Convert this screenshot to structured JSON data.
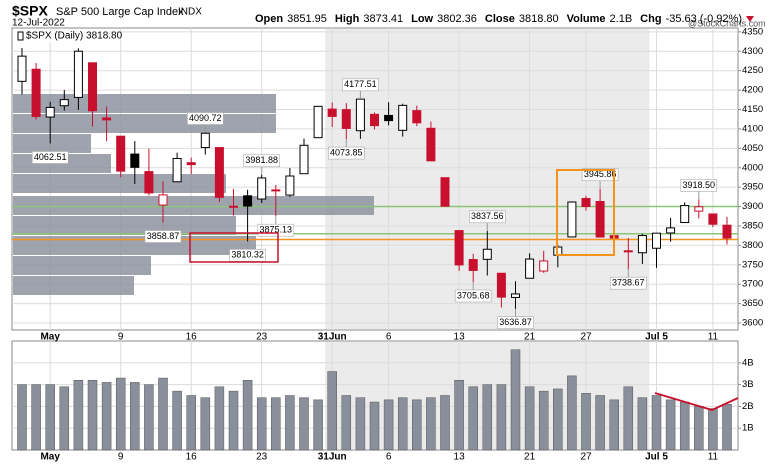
{
  "header": {
    "symbol": "$SPX",
    "name": "S&P 500 Large Cap Index",
    "exchange": "INDX",
    "date": "12-Jul-2022",
    "stats": [
      {
        "label": "Open",
        "value": "3851.95"
      },
      {
        "label": "High",
        "value": "3873.41"
      },
      {
        "label": "Low",
        "value": "3802.36"
      },
      {
        "label": "Close",
        "value": "3818.80"
      },
      {
        "label": "Volume",
        "value": "2.1B"
      },
      {
        "label": "Chg",
        "value": "-35.63 (-0.92%)"
      }
    ],
    "copyright": "@StockCharts.com"
  },
  "chart_data": [
    {
      "type": "candlestick",
      "legend": "$SPX (Daily) 3818.80",
      "categories": [
        null,
        null,
        "May",
        null,
        null,
        null,
        null,
        "9",
        null,
        null,
        null,
        null,
        "16",
        null,
        null,
        null,
        null,
        "23",
        null,
        null,
        null,
        null,
        "31Jun",
        null,
        null,
        null,
        "6",
        null,
        null,
        null,
        null,
        "13",
        null,
        null,
        null,
        null,
        "21",
        null,
        null,
        null,
        "27",
        null,
        null,
        null,
        null,
        "Jul 5",
        null,
        null,
        null,
        "11",
        null
      ],
      "open": [
        4222.58,
        4253.75,
        4130.61,
        4159.78,
        4181.18,
        4270.43,
        4128.17,
        4081.27,
        4035.18,
        3990.08,
        3903.95,
        3963.9,
        4013.02,
        4052,
        4051.98,
        3899,
        3927.76,
        3919.42,
        3942.94,
        3929.59,
        3984.6,
        4077.43,
        4151.09,
        4149.78,
        4095.41,
        4137.57,
        4134.72,
        4096.47,
        4147.12,
        4101.65,
        3974.39,
        3838.15,
        3763.52,
        3764.05,
        3728.18,
        3665.9,
        3715.31,
        3733.89,
        3774.71,
        3821.75,
        3920.76,
        3913,
        3825.09,
        3785.99,
        3781,
        3792.61,
        3831.98,
        3858.85,
        3888.26,
        3880.94,
        3851.95
      ],
      "high": [
        4308.45,
        4269.68,
        4169.81,
        4200.1,
        4307.66,
        4270.43,
        4157.69,
        4081.27,
        4068.82,
        4049.09,
        3964.8,
        4038.88,
        4026.17,
        4090.72,
        4051.98,
        3945.96,
        3943.42,
        3981.88,
        3955.68,
        3999.33,
        4075.14,
        4158.49,
        4168.34,
        4166.54,
        4177.51,
        4142.67,
        4168.78,
        4164.86,
        4160.14,
        4119.1,
        3974.39,
        3838.15,
        3778.18,
        3837.56,
        3728.18,
        3707.71,
        3779.65,
        3785.99,
        3802.58,
        3913.65,
        3927.72,
        3945.86,
        3836.5,
        3818.99,
        3829.82,
        3832.19,
        3870.91,
        3910.63,
        3918.5,
        3880.94,
        3873.41
      ],
      "low": [
        4188.63,
        4124.28,
        4062.51,
        4147.08,
        4148.91,
        4106.01,
        4067.91,
        3975.48,
        3958.17,
        3928.82,
        3858.87,
        3963.9,
        3983.99,
        4033.93,
        3911.91,
        3876.58,
        3810.32,
        3909.04,
        3875.13,
        3925.03,
        3984.6,
        4077.43,
        4104.88,
        4073.85,
        4074.37,
        4098.67,
        4109.18,
        4080.19,
        4107.2,
        4017.17,
        3900.16,
        3734.3,
        3705.68,
        3722.3,
        3639.77,
        3636.87,
        3715.31,
        3729.25,
        3743.52,
        3821.75,
        3889.66,
        3820.14,
        3799.02,
        3738.67,
        3752.1,
        3742.06,
        3809.37,
        3858.85,
        3869.34,
        3847.22,
        3802.36
      ],
      "close": [
        4287.5,
        4131.93,
        4155.38,
        4175.48,
        4300.17,
        4146.87,
        4123.34,
        3991.24,
        4001.05,
        3935.18,
        3930.08,
        4023.89,
        4008.01,
        4088.85,
        3923.68,
        3900.79,
        3901.36,
        3973.75,
        3941.48,
        3978.73,
        4057.84,
        4158.24,
        4132.15,
        4101.23,
        4176.82,
        4108.54,
        4121.43,
        4160.68,
        4115.77,
        4017.82,
        3900.86,
        3749.63,
        3735.48,
        3789.99,
        3666.77,
        3674.84,
        3764.79,
        3759.89,
        3795.73,
        3911.74,
        3900.11,
        3821.55,
        3818.83,
        3785.38,
        3825.33,
        3831.39,
        3845.08,
        3902.62,
        3899.38,
        3854.43,
        3818.8
      ],
      "up_color": "#000000",
      "down_color": "#c8102e",
      "ylim": [
        3582,
        4360
      ],
      "yticks": [
        3600,
        3650,
        3700,
        3750,
        3800,
        3850,
        3900,
        3950,
        4000,
        4050,
        4100,
        4150,
        4200,
        4250,
        4300,
        4350
      ],
      "grid": true,
      "hlines": [
        {
          "value": 3900,
          "color": "#8cc47a"
        },
        {
          "value": 3830,
          "color": "#8cc47a"
        },
        {
          "value": 3815,
          "color": "#f5931e"
        }
      ],
      "annotations": [
        {
          "text": "4062.51",
          "value": 4062.51
        },
        {
          "text": "4090.72",
          "value": 4090.72
        },
        {
          "text": "3858.87",
          "value": 3858.87
        },
        {
          "text": "3981.88",
          "value": 3981.88
        },
        {
          "text": "3875.13",
          "value": 3875.13
        },
        {
          "text": "3810.32",
          "value": 3810.32
        },
        {
          "text": "4177.51",
          "value": 4177.51
        },
        {
          "text": "4073.85",
          "value": 4073.85
        },
        {
          "text": "3837.56",
          "value": 3837.56
        },
        {
          "text": "3705.68",
          "value": 3705.68
        },
        {
          "text": "3636.87",
          "value": 3636.87
        },
        {
          "text": "3945.86",
          "value": 3945.86
        },
        {
          "text": "3738.67",
          "value": 3738.67
        },
        {
          "text": "3918.50",
          "value": 3918.5
        }
      ]
    },
    {
      "type": "bar",
      "categories": [
        null,
        null,
        "May",
        null,
        null,
        null,
        null,
        "9",
        null,
        null,
        null,
        null,
        "16",
        null,
        null,
        null,
        null,
        "23",
        null,
        null,
        null,
        null,
        "31Jun",
        null,
        null,
        null,
        "6",
        null,
        null,
        null,
        null,
        "13",
        null,
        null,
        null,
        null,
        "21",
        null,
        null,
        null,
        "27",
        null,
        null,
        null,
        null,
        "Jul 5",
        null,
        null,
        null,
        "11",
        null
      ],
      "values": [
        3.0,
        3.0,
        3.0,
        2.9,
        3.2,
        3.2,
        3.1,
        3.3,
        3.1,
        3.0,
        3.3,
        2.7,
        2.5,
        2.4,
        2.9,
        2.7,
        3.2,
        2.4,
        2.4,
        2.5,
        2.4,
        2.3,
        3.6,
        2.5,
        2.4,
        2.2,
        2.3,
        2.4,
        2.3,
        2.4,
        2.5,
        3.2,
        2.9,
        3.0,
        3.0,
        4.6,
        2.9,
        2.7,
        2.8,
        3.4,
        2.6,
        2.5,
        2.3,
        2.9,
        2.4,
        2.5,
        2.3,
        2.2,
        2.0,
        1.9,
        2.1
      ],
      "color": "#8a8f9c",
      "ylim": [
        0,
        5
      ],
      "yticks": [
        {
          "value": 1,
          "label": "1B"
        },
        {
          "value": 2,
          "label": "2B"
        },
        {
          "value": 3,
          "label": "3B"
        },
        {
          "value": 4,
          "label": "4B"
        }
      ],
      "grid": true
    }
  ]
}
